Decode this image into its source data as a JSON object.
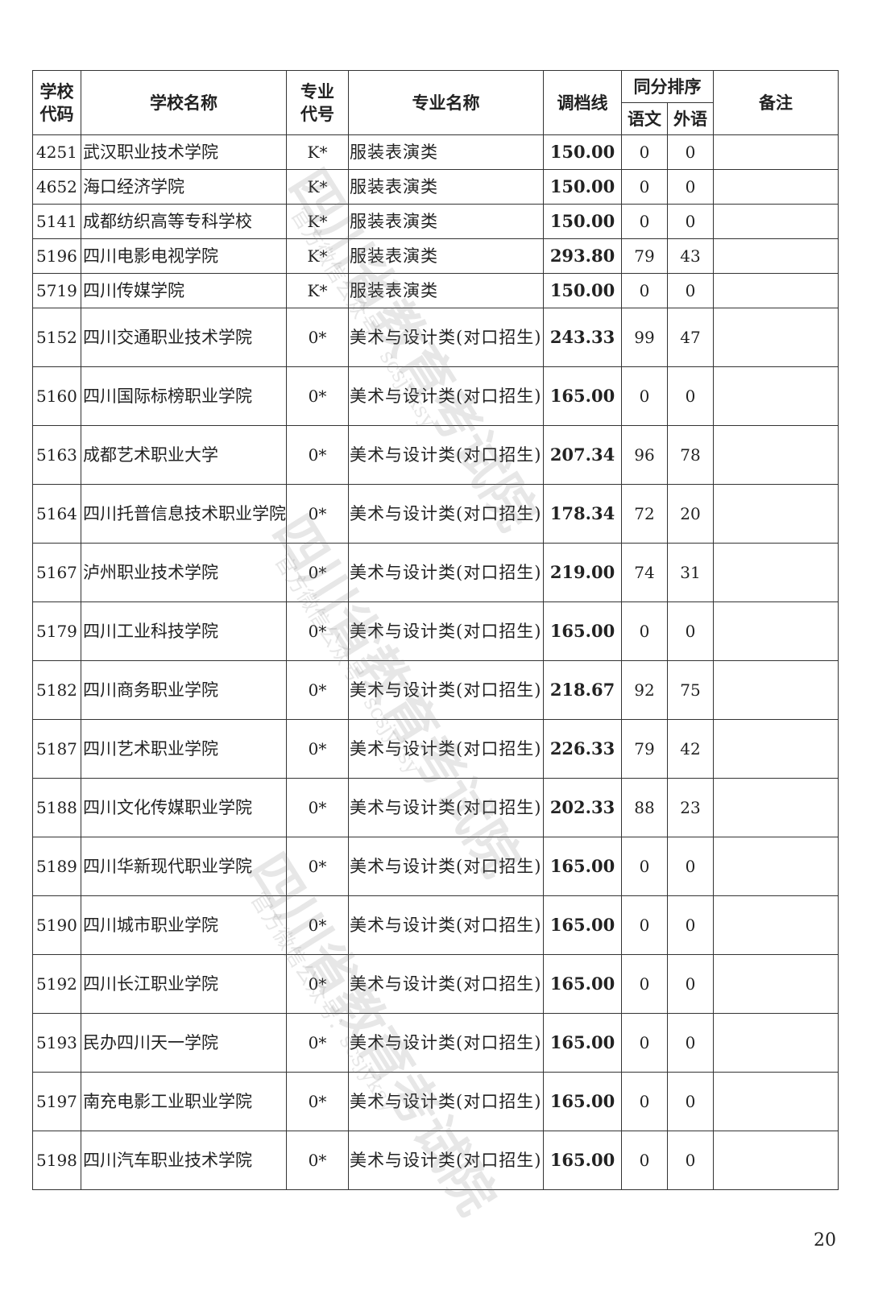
{
  "headers": {
    "school_code": "学校代码",
    "school_name": "学校名称",
    "major_code": "专业代号",
    "major_name": "专业名称",
    "cutoff": "调档线",
    "tie_order": "同分排序",
    "chinese": "语文",
    "foreign": "外语",
    "remarks": "备注"
  },
  "rows": [
    {
      "code": "4251",
      "school": "武汉职业技术学院",
      "mcode": "K*",
      "major": "服装表演类",
      "score": "150.00",
      "cn": "0",
      "fl": "0",
      "note": ""
    },
    {
      "code": "4652",
      "school": "海口经济学院",
      "mcode": "K*",
      "major": "服装表演类",
      "score": "150.00",
      "cn": "0",
      "fl": "0",
      "note": ""
    },
    {
      "code": "5141",
      "school": "成都纺织高等专科学校",
      "mcode": "K*",
      "major": "服装表演类",
      "score": "150.00",
      "cn": "0",
      "fl": "0",
      "note": ""
    },
    {
      "code": "5196",
      "school": "四川电影电视学院",
      "mcode": "K*",
      "major": "服装表演类",
      "score": "293.80",
      "cn": "79",
      "fl": "43",
      "note": ""
    },
    {
      "code": "5719",
      "school": "四川传媒学院",
      "mcode": "K*",
      "major": "服装表演类",
      "score": "150.00",
      "cn": "0",
      "fl": "0",
      "note": ""
    },
    {
      "code": "5152",
      "school": "四川交通职业技术学院",
      "mcode": "0*",
      "major": "美术与设计类(对口招生)",
      "score": "243.33",
      "cn": "99",
      "fl": "47",
      "note": ""
    },
    {
      "code": "5160",
      "school": "四川国际标榜职业学院",
      "mcode": "0*",
      "major": "美术与设计类(对口招生)",
      "score": "165.00",
      "cn": "0",
      "fl": "0",
      "note": ""
    },
    {
      "code": "5163",
      "school": "成都艺术职业大学",
      "mcode": "0*",
      "major": "美术与设计类(对口招生)",
      "score": "207.34",
      "cn": "96",
      "fl": "78",
      "note": ""
    },
    {
      "code": "5164",
      "school": "四川托普信息技术职业学院",
      "mcode": "0*",
      "major": "美术与设计类(对口招生)",
      "score": "178.34",
      "cn": "72",
      "fl": "20",
      "note": ""
    },
    {
      "code": "5167",
      "school": "泸州职业技术学院",
      "mcode": "0*",
      "major": "美术与设计类(对口招生)",
      "score": "219.00",
      "cn": "74",
      "fl": "31",
      "note": ""
    },
    {
      "code": "5179",
      "school": "四川工业科技学院",
      "mcode": "0*",
      "major": "美术与设计类(对口招生)",
      "score": "165.00",
      "cn": "0",
      "fl": "0",
      "note": ""
    },
    {
      "code": "5182",
      "school": "四川商务职业学院",
      "mcode": "0*",
      "major": "美术与设计类(对口招生)",
      "score": "218.67",
      "cn": "92",
      "fl": "75",
      "note": ""
    },
    {
      "code": "5187",
      "school": "四川艺术职业学院",
      "mcode": "0*",
      "major": "美术与设计类(对口招生)",
      "score": "226.33",
      "cn": "79",
      "fl": "42",
      "note": ""
    },
    {
      "code": "5188",
      "school": "四川文化传媒职业学院",
      "mcode": "0*",
      "major": "美术与设计类(对口招生)",
      "score": "202.33",
      "cn": "88",
      "fl": "23",
      "note": ""
    },
    {
      "code": "5189",
      "school": "四川华新现代职业学院",
      "mcode": "0*",
      "major": "美术与设计类(对口招生)",
      "score": "165.00",
      "cn": "0",
      "fl": "0",
      "note": ""
    },
    {
      "code": "5190",
      "school": "四川城市职业学院",
      "mcode": "0*",
      "major": "美术与设计类(对口招生)",
      "score": "165.00",
      "cn": "0",
      "fl": "0",
      "note": ""
    },
    {
      "code": "5192",
      "school": "四川长江职业学院",
      "mcode": "0*",
      "major": "美术与设计类(对口招生)",
      "score": "165.00",
      "cn": "0",
      "fl": "0",
      "note": ""
    },
    {
      "code": "5193",
      "school": "民办四川天一学院",
      "mcode": "0*",
      "major": "美术与设计类(对口招生)",
      "score": "165.00",
      "cn": "0",
      "fl": "0",
      "note": ""
    },
    {
      "code": "5197",
      "school": "南充电影工业职业学院",
      "mcode": "0*",
      "major": "美术与设计类(对口招生)",
      "score": "165.00",
      "cn": "0",
      "fl": "0",
      "note": ""
    },
    {
      "code": "5198",
      "school": "四川汽车职业技术学院",
      "mcode": "0*",
      "major": "美术与设计类(对口招生)",
      "score": "165.00",
      "cn": "0",
      "fl": "0",
      "note": ""
    }
  ],
  "page_number": "20",
  "watermark": {
    "main": "四川省教育考试院",
    "sub": "官方微信公众号：scsjyksy"
  }
}
